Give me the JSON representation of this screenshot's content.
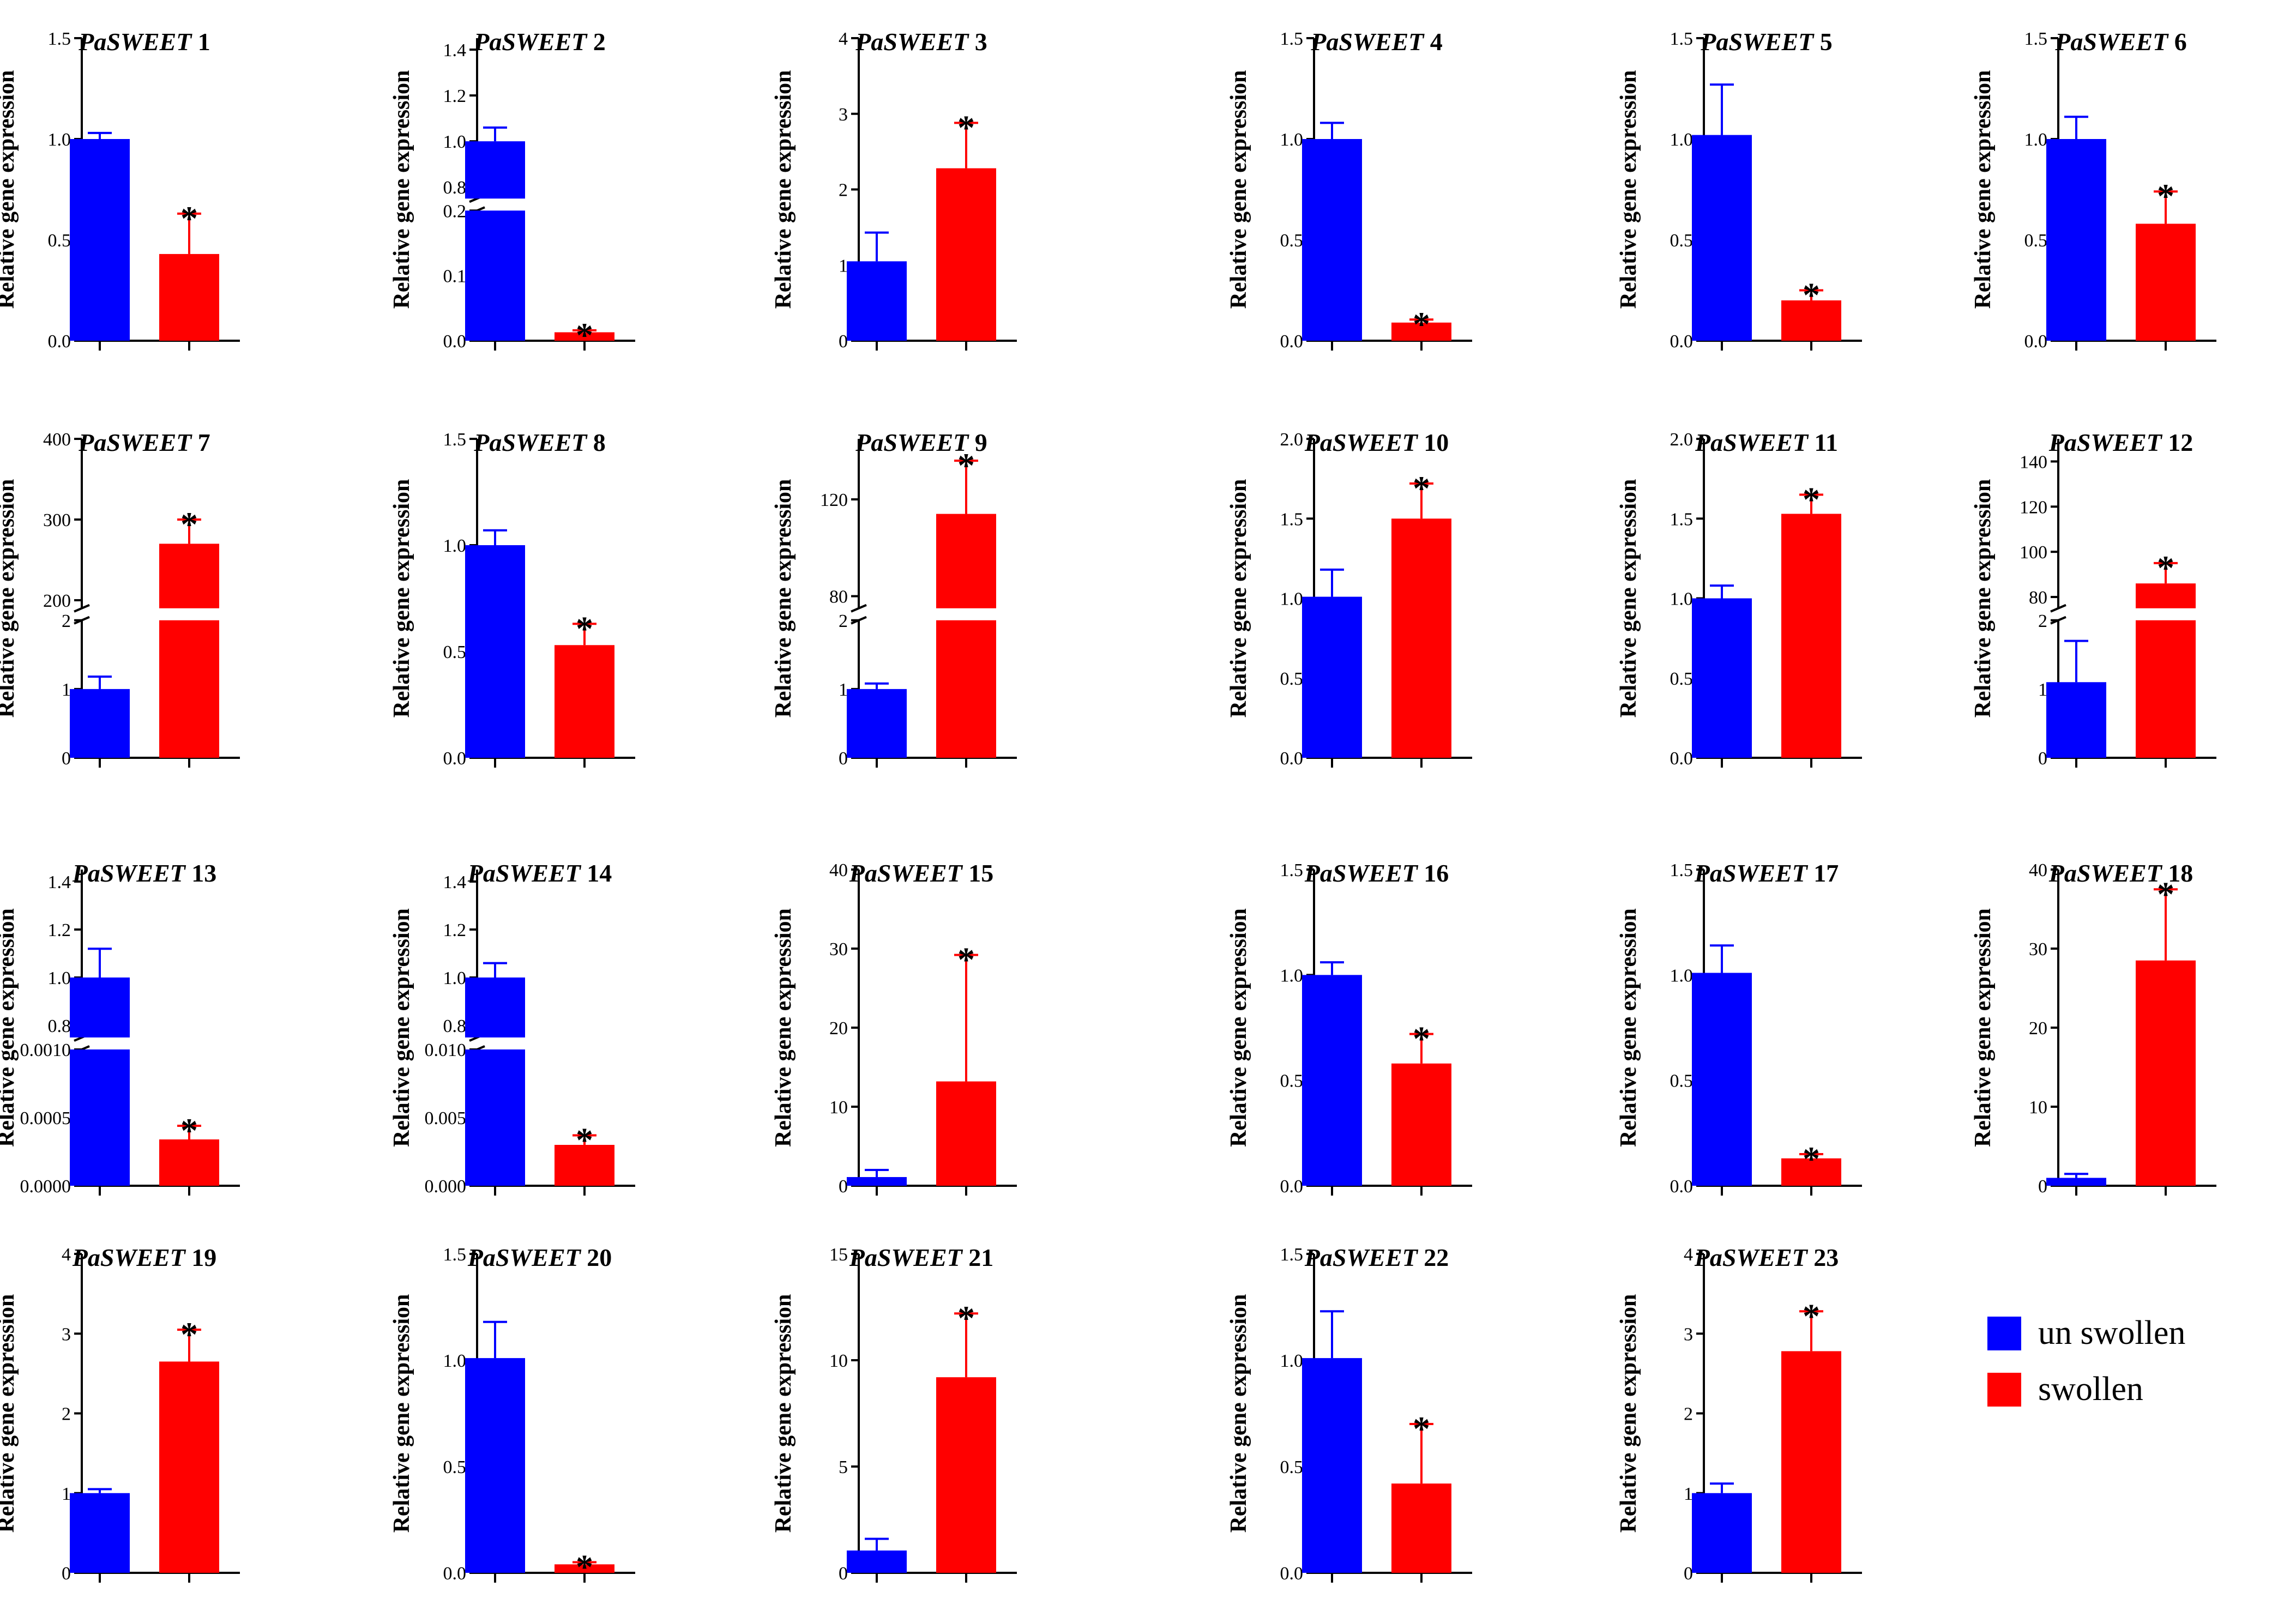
{
  "colors": {
    "un_swollen": "#0000ff",
    "swollen": "#ff0000",
    "axis": "#000000"
  },
  "legend": {
    "entries": [
      {
        "label": "un swollen",
        "series": "un_swollen"
      },
      {
        "label": "swollen",
        "series": "swollen"
      }
    ],
    "position": "bottom-right"
  },
  "chart_data": [
    {
      "type": "bar",
      "title_gene": "PaSWEET",
      "title_num": "1",
      "ylabel": "Relative gene expression",
      "ylim": [
        0,
        1.5
      ],
      "ticks": [
        "0.0",
        "0.5",
        "1.0",
        "1.5"
      ],
      "tick_values": [
        0,
        0.5,
        1.0,
        1.5
      ],
      "series": [
        {
          "name": "un swollen",
          "value": 1.0,
          "error": 0.03,
          "sig": false
        },
        {
          "name": "swollen",
          "value": 0.43,
          "error": 0.2,
          "sig": true
        }
      ]
    },
    {
      "type": "bar",
      "title_gene": "PaSWEET",
      "title_num": "2",
      "ylabel": "Relative gene expression",
      "broken": {
        "lower": [
          0,
          0.2
        ],
        "upper": [
          0.75,
          1.45
        ]
      },
      "lower_ticks": [
        "0.0",
        "0.1",
        "0.2"
      ],
      "lower_tick_values": [
        0,
        0.1,
        0.2
      ],
      "upper_ticks": [
        "0.8",
        "1.0",
        "1.2",
        "1.4"
      ],
      "upper_tick_values": [
        0.8,
        1.0,
        1.2,
        1.4
      ],
      "series": [
        {
          "name": "un swollen",
          "value": 1.0,
          "error": 0.06,
          "sig": false
        },
        {
          "name": "swollen",
          "value": 0.013,
          "error": 0.003,
          "sig": true
        }
      ]
    },
    {
      "type": "bar",
      "title_gene": "PaSWEET",
      "title_num": "3",
      "ylabel": "Relative gene expression",
      "ylim": [
        0,
        4
      ],
      "ticks": [
        "0",
        "1",
        "2",
        "3",
        "4"
      ],
      "tick_values": [
        0,
        1,
        2,
        3,
        4
      ],
      "series": [
        {
          "name": "un swollen",
          "value": 1.05,
          "error": 0.38,
          "sig": false
        },
        {
          "name": "swollen",
          "value": 2.28,
          "error": 0.6,
          "sig": true
        }
      ]
    },
    {
      "type": "bar",
      "title_gene": "PaSWEET",
      "title_num": "4",
      "ylabel": "Relative gene expression",
      "ylim": [
        0,
        1.5
      ],
      "ticks": [
        "0.0",
        "0.5",
        "1.0",
        "1.5"
      ],
      "tick_values": [
        0,
        0.5,
        1.0,
        1.5
      ],
      "series": [
        {
          "name": "un swollen",
          "value": 1.0,
          "error": 0.08,
          "sig": false
        },
        {
          "name": "swollen",
          "value": 0.09,
          "error": 0.015,
          "sig": true
        }
      ]
    },
    {
      "type": "bar",
      "title_gene": "PaSWEET",
      "title_num": "5",
      "ylabel": "Relative gene expression",
      "ylim": [
        0,
        1.5
      ],
      "ticks": [
        "0.0",
        "0.5",
        "1.0",
        "1.5"
      ],
      "tick_values": [
        0,
        0.5,
        1.0,
        1.5
      ],
      "series": [
        {
          "name": "un swollen",
          "value": 1.02,
          "error": 0.25,
          "sig": false
        },
        {
          "name": "swollen",
          "value": 0.2,
          "error": 0.05,
          "sig": true
        }
      ]
    },
    {
      "type": "bar",
      "title_gene": "PaSWEET",
      "title_num": "6",
      "ylabel": "Relative gene expression",
      "ylim": [
        0,
        1.5
      ],
      "ticks": [
        "0.0",
        "0.5",
        "1.0",
        "1.5"
      ],
      "tick_values": [
        0,
        0.5,
        1.0,
        1.5
      ],
      "series": [
        {
          "name": "un swollen",
          "value": 1.0,
          "error": 0.11,
          "sig": false
        },
        {
          "name": "swollen",
          "value": 0.58,
          "error": 0.16,
          "sig": true
        }
      ]
    },
    {
      "type": "bar",
      "title_gene": "PaSWEET",
      "title_num": "7",
      "ylabel": "Relative gene expression",
      "broken": {
        "lower": [
          0,
          2
        ],
        "upper": [
          190,
          400
        ]
      },
      "lower_ticks": [
        "0",
        "1",
        "2"
      ],
      "lower_tick_values": [
        0,
        1,
        2
      ],
      "upper_ticks": [
        "200",
        "300",
        "400"
      ],
      "upper_tick_values": [
        200,
        300,
        400
      ],
      "series": [
        {
          "name": "un swollen",
          "value": 1.0,
          "error": 0.18,
          "sig": false
        },
        {
          "name": "swollen",
          "value": 270,
          "error": 30,
          "sig": true
        }
      ]
    },
    {
      "type": "bar",
      "title_gene": "PaSWEET",
      "title_num": "8",
      "ylabel": "Relative gene expression",
      "ylim": [
        0,
        1.5
      ],
      "ticks": [
        "0.0",
        "0.5",
        "1.0",
        "1.5"
      ],
      "tick_values": [
        0,
        0.5,
        1.0,
        1.5
      ],
      "series": [
        {
          "name": "un swollen",
          "value": 1.0,
          "error": 0.07,
          "sig": false
        },
        {
          "name": "swollen",
          "value": 0.53,
          "error": 0.1,
          "sig": true
        }
      ]
    },
    {
      "type": "bar",
      "title_gene": "PaSWEET",
      "title_num": "9",
      "ylabel": "Relative gene expression",
      "broken": {
        "lower": [
          0,
          2
        ],
        "upper": [
          75,
          145
        ]
      },
      "lower_ticks": [
        "0",
        "1",
        "2"
      ],
      "lower_tick_values": [
        0,
        1,
        2
      ],
      "upper_ticks": [
        "80",
        "120"
      ],
      "upper_tick_values": [
        80,
        120
      ],
      "series": [
        {
          "name": "un swollen",
          "value": 1.0,
          "error": 0.08,
          "sig": false
        },
        {
          "name": "swollen",
          "value": 114,
          "error": 22,
          "sig": true
        }
      ]
    },
    {
      "type": "bar",
      "title_gene": "PaSWEET",
      "title_num": "10",
      "ylabel": "Relative gene expression",
      "ylim": [
        0,
        2.0
      ],
      "ticks": [
        "0.0",
        "0.5",
        "1.0",
        "1.5",
        "2.0"
      ],
      "tick_values": [
        0,
        0.5,
        1.0,
        1.5,
        2.0
      ],
      "series": [
        {
          "name": "un swollen",
          "value": 1.01,
          "error": 0.17,
          "sig": false
        },
        {
          "name": "swollen",
          "value": 1.5,
          "error": 0.22,
          "sig": true
        }
      ]
    },
    {
      "type": "bar",
      "title_gene": "PaSWEET",
      "title_num": "11",
      "ylabel": "Relative gene expression",
      "ylim": [
        0,
        2.0
      ],
      "ticks": [
        "0.0",
        "0.5",
        "1.0",
        "1.5",
        "2.0"
      ],
      "tick_values": [
        0,
        0.5,
        1.0,
        1.5,
        2.0
      ],
      "series": [
        {
          "name": "un swollen",
          "value": 1.0,
          "error": 0.08,
          "sig": false
        },
        {
          "name": "swollen",
          "value": 1.53,
          "error": 0.12,
          "sig": true
        }
      ]
    },
    {
      "type": "bar",
      "title_gene": "PaSWEET",
      "title_num": "12",
      "ylabel": "Relative gene expression",
      "broken": {
        "lower": [
          0,
          2
        ],
        "upper": [
          75,
          150
        ]
      },
      "lower_ticks": [
        "0",
        "1",
        "2"
      ],
      "lower_tick_values": [
        0,
        1,
        2
      ],
      "upper_ticks": [
        "80",
        "100",
        "120",
        "140"
      ],
      "upper_tick_values": [
        80,
        100,
        120,
        140
      ],
      "series": [
        {
          "name": "un swollen",
          "value": 1.1,
          "error": 0.6,
          "sig": false
        },
        {
          "name": "swollen",
          "value": 86,
          "error": 9,
          "sig": true
        }
      ]
    },
    {
      "type": "bar",
      "title_gene": "PaSWEET",
      "title_num": "13",
      "ylabel": "Relative gene expression",
      "broken": {
        "lower": [
          0,
          0.001
        ],
        "upper": [
          0.75,
          1.45
        ]
      },
      "lower_ticks": [
        "0.0000",
        "0.0005",
        "0.0010"
      ],
      "lower_tick_values": [
        0,
        0.0005,
        0.001
      ],
      "upper_ticks": [
        "0.8",
        "1.0",
        "1.2",
        "1.4"
      ],
      "upper_tick_values": [
        0.8,
        1.0,
        1.2,
        1.4
      ],
      "series": [
        {
          "name": "un swollen",
          "value": 1.0,
          "error": 0.12,
          "sig": false
        },
        {
          "name": "swollen",
          "value": 0.00034,
          "error": 0.0001,
          "sig": true
        }
      ]
    },
    {
      "type": "bar",
      "title_gene": "PaSWEET",
      "title_num": "14",
      "ylabel": "Relative gene expression",
      "broken": {
        "lower": [
          0,
          0.01
        ],
        "upper": [
          0.75,
          1.45
        ]
      },
      "lower_ticks": [
        "0.000",
        "0.005",
        "0.010"
      ],
      "lower_tick_values": [
        0,
        0.005,
        0.01
      ],
      "upper_ticks": [
        "0.8",
        "1.0",
        "1.2",
        "1.4"
      ],
      "upper_tick_values": [
        0.8,
        1.0,
        1.2,
        1.4
      ],
      "series": [
        {
          "name": "un swollen",
          "value": 1.0,
          "error": 0.06,
          "sig": false
        },
        {
          "name": "swollen",
          "value": 0.003,
          "error": 0.0007,
          "sig": true
        }
      ]
    },
    {
      "type": "bar",
      "title_gene": "PaSWEET",
      "title_num": "15",
      "ylabel": "Relative gene expression",
      "ylim": [
        0,
        40
      ],
      "ticks": [
        "0",
        "10",
        "20",
        "30",
        "40"
      ],
      "tick_values": [
        0,
        10,
        20,
        30,
        40
      ],
      "series": [
        {
          "name": "un swollen",
          "value": 1.1,
          "error": 0.9,
          "sig": false
        },
        {
          "name": "swollen",
          "value": 13.2,
          "error": 16,
          "sig": true
        }
      ]
    },
    {
      "type": "bar",
      "title_gene": "PaSWEET",
      "title_num": "16",
      "ylabel": "Relative gene expression",
      "ylim": [
        0,
        1.5
      ],
      "ticks": [
        "0.0",
        "0.5",
        "1.0",
        "1.5"
      ],
      "tick_values": [
        0,
        0.5,
        1.0,
        1.5
      ],
      "series": [
        {
          "name": "un swollen",
          "value": 1.0,
          "error": 0.06,
          "sig": false
        },
        {
          "name": "swollen",
          "value": 0.58,
          "error": 0.14,
          "sig": true
        }
      ]
    },
    {
      "type": "bar",
      "title_gene": "PaSWEET",
      "title_num": "17",
      "ylabel": "Relative gene expression",
      "ylim": [
        0,
        1.5
      ],
      "ticks": [
        "0.0",
        "0.5",
        "1.0",
        "1.5"
      ],
      "tick_values": [
        0,
        0.5,
        1.0,
        1.5
      ],
      "series": [
        {
          "name": "un swollen",
          "value": 1.01,
          "error": 0.13,
          "sig": false
        },
        {
          "name": "swollen",
          "value": 0.13,
          "error": 0.02,
          "sig": true
        }
      ]
    },
    {
      "type": "bar",
      "title_gene": "PaSWEET",
      "title_num": "18",
      "ylabel": "Relative gene expression",
      "ylim": [
        0,
        40
      ],
      "ticks": [
        "0",
        "10",
        "20",
        "30",
        "40"
      ],
      "tick_values": [
        0,
        10,
        20,
        30,
        40
      ],
      "series": [
        {
          "name": "un swollen",
          "value": 1.0,
          "error": 0.5,
          "sig": false
        },
        {
          "name": "swollen",
          "value": 28.5,
          "error": 9,
          "sig": true
        }
      ]
    },
    {
      "type": "bar",
      "title_gene": "PaSWEET",
      "title_num": "19",
      "ylabel": "Relative gene expression",
      "ylim": [
        0,
        4
      ],
      "ticks": [
        "0",
        "1",
        "2",
        "3",
        "4"
      ],
      "tick_values": [
        0,
        1,
        2,
        3,
        4
      ],
      "series": [
        {
          "name": "un swollen",
          "value": 1.0,
          "error": 0.05,
          "sig": false
        },
        {
          "name": "swollen",
          "value": 2.65,
          "error": 0.4,
          "sig": true
        }
      ]
    },
    {
      "type": "bar",
      "title_gene": "PaSWEET",
      "title_num": "20",
      "ylabel": "Relative gene expression",
      "ylim": [
        0,
        1.5
      ],
      "ticks": [
        "0.0",
        "0.5",
        "1.0",
        "1.5"
      ],
      "tick_values": [
        0,
        0.5,
        1.0,
        1.5
      ],
      "series": [
        {
          "name": "un swollen",
          "value": 1.01,
          "error": 0.17,
          "sig": false
        },
        {
          "name": "swollen",
          "value": 0.04,
          "error": 0.01,
          "sig": true
        }
      ]
    },
    {
      "type": "bar",
      "title_gene": "PaSWEET",
      "title_num": "21",
      "ylabel": "Relative gene expression",
      "ylim": [
        0,
        15
      ],
      "ticks": [
        "0",
        "5",
        "10",
        "15"
      ],
      "tick_values": [
        0,
        5,
        10,
        15
      ],
      "series": [
        {
          "name": "un swollen",
          "value": 1.05,
          "error": 0.55,
          "sig": false
        },
        {
          "name": "swollen",
          "value": 9.2,
          "error": 3.0,
          "sig": true
        }
      ]
    },
    {
      "type": "bar",
      "title_gene": "PaSWEET",
      "title_num": "22",
      "ylabel": "Relative gene expression",
      "ylim": [
        0,
        1.5
      ],
      "ticks": [
        "0.0",
        "0.5",
        "1.0",
        "1.5"
      ],
      "tick_values": [
        0,
        0.5,
        1.0,
        1.5
      ],
      "series": [
        {
          "name": "un swollen",
          "value": 1.01,
          "error": 0.22,
          "sig": false
        },
        {
          "name": "swollen",
          "value": 0.42,
          "error": 0.28,
          "sig": true
        }
      ]
    },
    {
      "type": "bar",
      "title_gene": "PaSWEET",
      "title_num": "23",
      "ylabel": "Relative gene expression",
      "ylim": [
        0,
        4
      ],
      "ticks": [
        "0",
        "1",
        "2",
        "3",
        "4"
      ],
      "tick_values": [
        0,
        1,
        2,
        3,
        4
      ],
      "series": [
        {
          "name": "un swollen",
          "value": 1.0,
          "error": 0.12,
          "sig": false
        },
        {
          "name": "swollen",
          "value": 2.78,
          "error": 0.5,
          "sig": true
        }
      ]
    }
  ]
}
